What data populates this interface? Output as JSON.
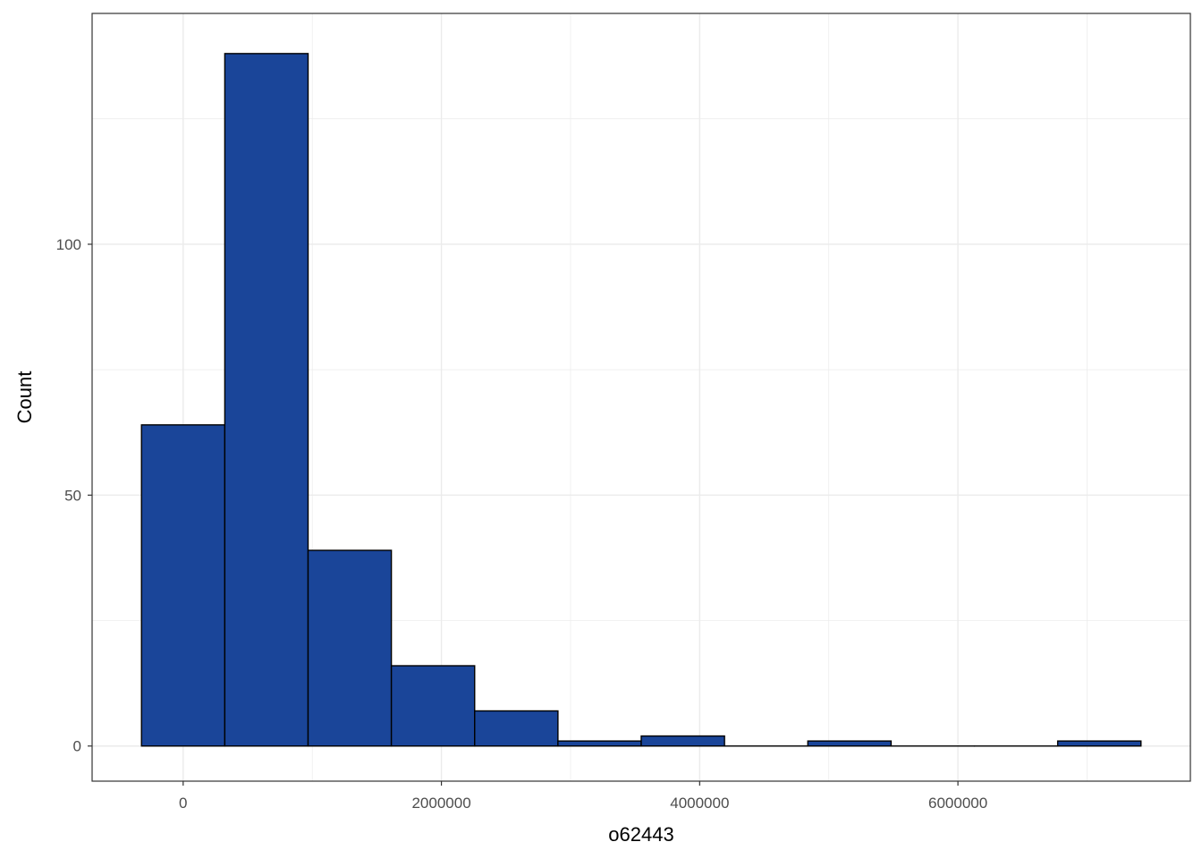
{
  "chart_data": {
    "type": "bar",
    "title": "",
    "xlabel": "o62443",
    "ylabel": "Count",
    "bin_width": 645000,
    "bins": [
      {
        "x0": -322500,
        "x1": 322500,
        "count": 64
      },
      {
        "x0": 322500,
        "x1": 967500,
        "count": 138
      },
      {
        "x0": 967500,
        "x1": 1612500,
        "count": 39
      },
      {
        "x0": 1612500,
        "x1": 2257500,
        "count": 16
      },
      {
        "x0": 2257500,
        "x1": 2902500,
        "count": 7
      },
      {
        "x0": 2902500,
        "x1": 3547500,
        "count": 1
      },
      {
        "x0": 3547500,
        "x1": 4192500,
        "count": 2
      },
      {
        "x0": 4192500,
        "x1": 4837500,
        "count": 0
      },
      {
        "x0": 4837500,
        "x1": 5482500,
        "count": 1
      },
      {
        "x0": 5482500,
        "x1": 6127500,
        "count": 0
      },
      {
        "x0": 6127500,
        "x1": 6772500,
        "count": 0
      },
      {
        "x0": 6772500,
        "x1": 7417500,
        "count": 1
      }
    ],
    "xlim": [
      -705000,
      7800000
    ],
    "ylim": [
      -7,
      146
    ],
    "x_ticks": [
      0,
      2000000,
      4000000,
      6000000
    ],
    "x_tick_labels": [
      "0",
      "2000000",
      "4000000",
      "6000000"
    ],
    "y_ticks": [
      0,
      50,
      100
    ],
    "y_tick_labels": [
      "0",
      "50",
      "100"
    ],
    "x_minor_ticks": [
      1000000,
      3000000,
      5000000,
      7000000
    ],
    "y_minor_ticks": [
      25,
      75,
      125
    ],
    "grid": true,
    "legend": "none",
    "colors": {
      "bar_fill": "#1A4599",
      "bar_outline": "#000000",
      "grid": "#EBEBEB",
      "panel_border": "#333333",
      "tick_label": "#4D4D4D"
    }
  }
}
